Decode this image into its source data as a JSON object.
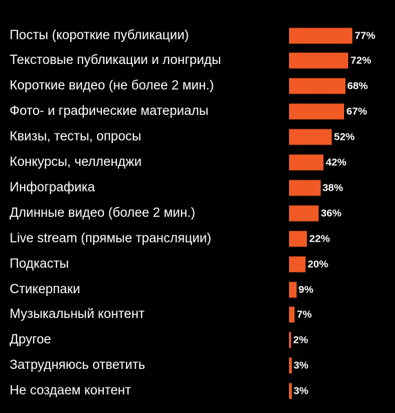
{
  "chart_data": {
    "type": "bar",
    "orientation": "horizontal",
    "categories": [
      "Посты (короткие публикации)",
      "Текстовые публикации и лонгриды",
      "Короткие видео (не более 2 мин.)",
      "Фото- и графические материалы",
      "Квизы, тесты, опросы",
      "Конкурсы, челленджи",
      "Инфографика",
      "Длинные видео (более 2 мин.)",
      "Live stream (прямые трансляции)",
      "Подкасты",
      "Стикерпаки",
      "Музыкальный контент",
      "Другое",
      "Затрудняюсь ответить",
      "Не создаем контент"
    ],
    "values": [
      77,
      72,
      68,
      67,
      52,
      42,
      38,
      36,
      22,
      20,
      9,
      7,
      2,
      3,
      3
    ],
    "value_labels": [
      "77%",
      "72%",
      "68%",
      "67%",
      "52%",
      "42%",
      "38%",
      "36%",
      "22%",
      "20%",
      "9%",
      "7%",
      "2%",
      "3%",
      "3%"
    ],
    "unit": "%",
    "grid": false,
    "legend": "none",
    "colors": {
      "bar": "#F15A24",
      "background": "#000000",
      "text": "#FFFFFF"
    }
  }
}
